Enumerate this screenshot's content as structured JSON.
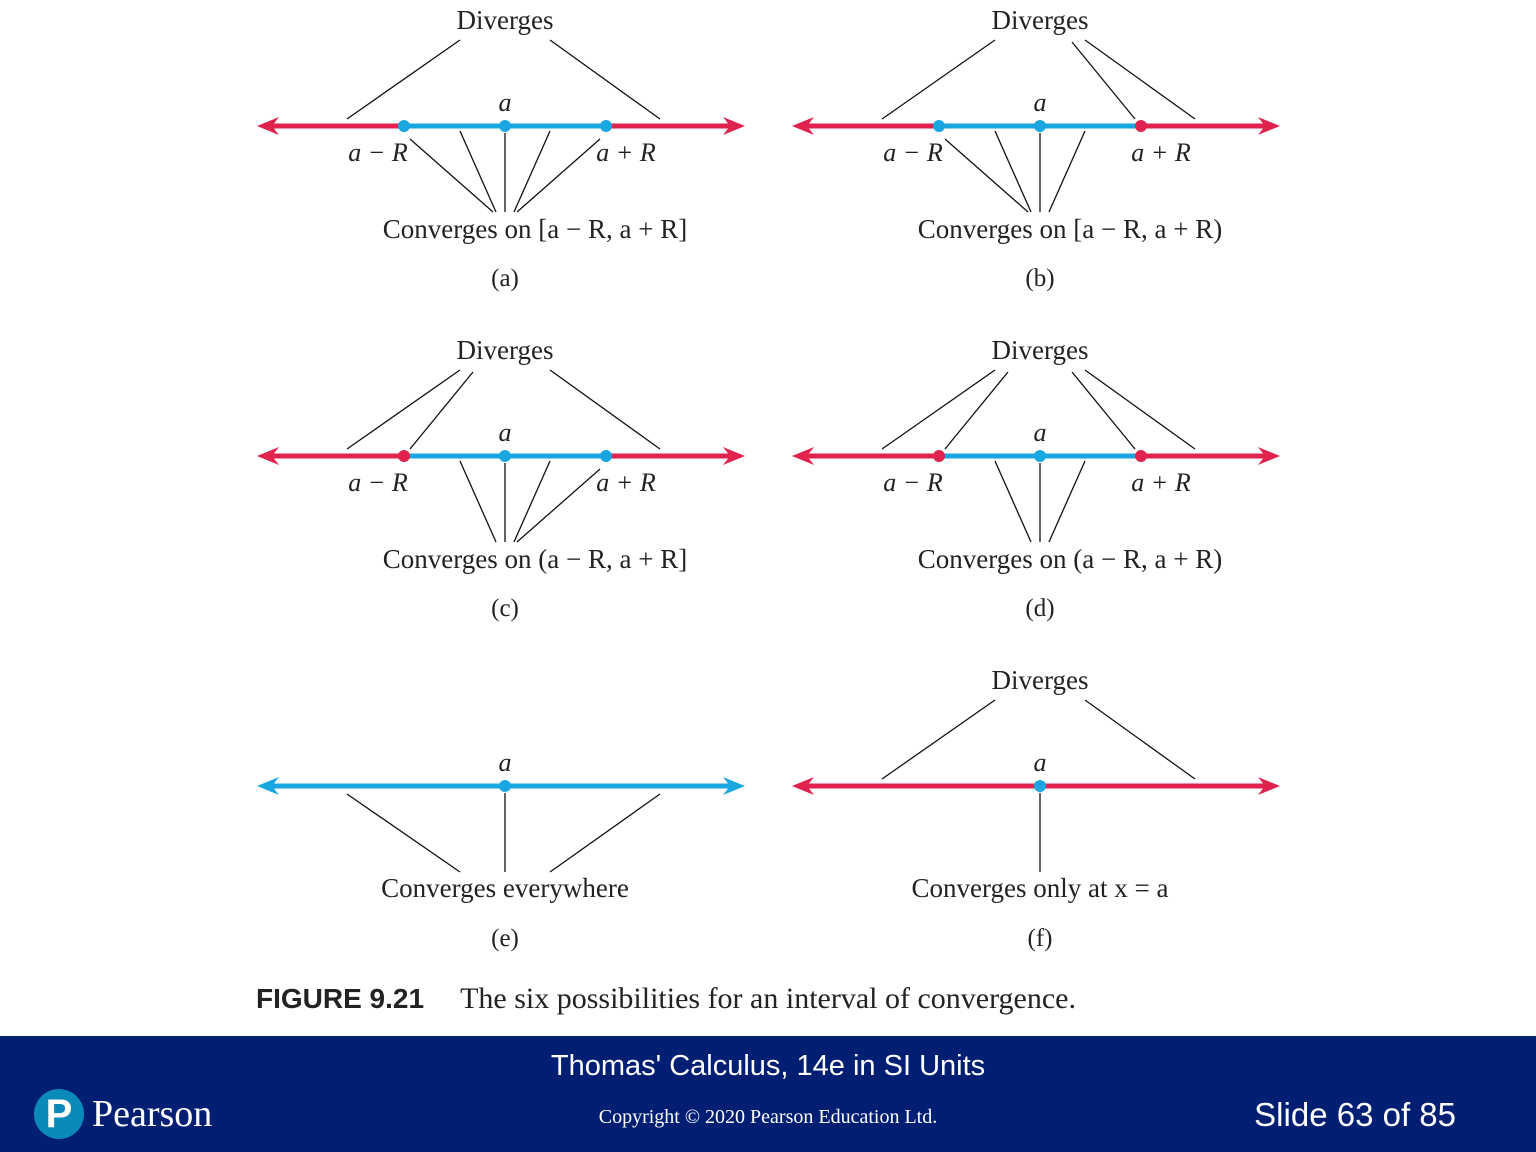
{
  "colors": {
    "diverge": "#e0224e",
    "converge": "#1aa7e1",
    "footer_bg": "#001f73",
    "logo": "#0a8ab8"
  },
  "panels": [
    {
      "id": "a",
      "caption": "(a)",
      "diverges_label": "Diverges",
      "center_label": "a",
      "left_endpoint_label": "a − R",
      "right_endpoint_label": "a + R",
      "converges_label": "Converges on [a − R, a + R]",
      "left_endpoint_included": true,
      "right_endpoint_included": true,
      "radius": "finite"
    },
    {
      "id": "b",
      "caption": "(b)",
      "diverges_label": "Diverges",
      "center_label": "a",
      "left_endpoint_label": "a − R",
      "right_endpoint_label": "a + R",
      "converges_label": "Converges on [a − R, a + R)",
      "left_endpoint_included": true,
      "right_endpoint_included": false,
      "radius": "finite"
    },
    {
      "id": "c",
      "caption": "(c)",
      "diverges_label": "Diverges",
      "center_label": "a",
      "left_endpoint_label": "a − R",
      "right_endpoint_label": "a + R",
      "converges_label": "Converges on (a − R, a + R]",
      "left_endpoint_included": false,
      "right_endpoint_included": true,
      "radius": "finite"
    },
    {
      "id": "d",
      "caption": "(d)",
      "diverges_label": "Diverges",
      "center_label": "a",
      "left_endpoint_label": "a − R",
      "right_endpoint_label": "a + R",
      "converges_label": "Converges on (a − R, a + R)",
      "left_endpoint_included": false,
      "right_endpoint_included": false,
      "radius": "finite"
    },
    {
      "id": "e",
      "caption": "(e)",
      "center_label": "a",
      "converges_label": "Converges everywhere",
      "radius": "infinite"
    },
    {
      "id": "f",
      "caption": "(f)",
      "diverges_label": "Diverges",
      "center_label": "a",
      "converges_label": "Converges only at x = a",
      "radius": "zero"
    }
  ],
  "figure": {
    "number": "FIGURE 9.21",
    "caption": "The six possibilities for an interval of convergence."
  },
  "footer": {
    "book_title": "Thomas' Calculus, 14e in SI Units",
    "copyright": "Copyright © 2020 Pearson Education Ltd.",
    "slide_number": "Slide 63 of 85",
    "logo_text": "Pearson",
    "logo_letter": "P"
  }
}
